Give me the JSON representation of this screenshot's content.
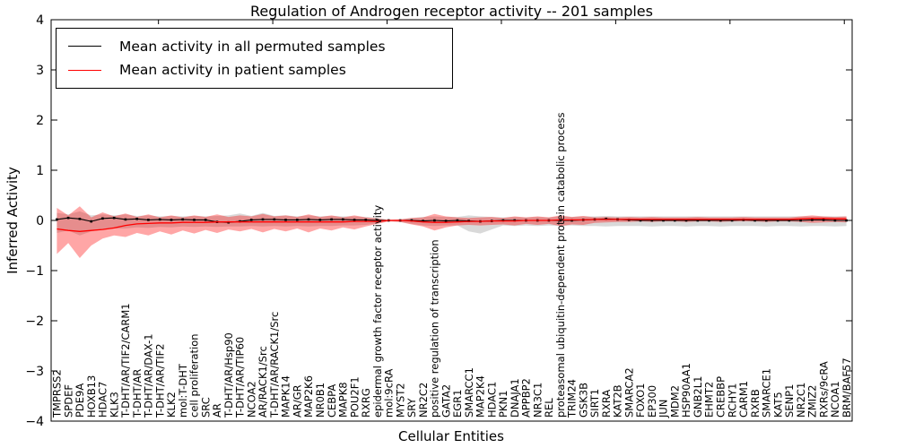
{
  "chart_data": {
    "type": "line",
    "title": "Regulation of Androgen receptor activity -- 201 samples",
    "xlabel": "Cellular Entities",
    "ylabel": "Inferred Activity",
    "ylim": [
      -4,
      4
    ],
    "yticks": [
      -4,
      -3,
      -2,
      -1,
      0,
      1,
      2,
      3,
      4
    ],
    "grid": false,
    "legend_position": "upper left",
    "x_tick_label_rotation": 90,
    "categories": [
      "TMPRSS2",
      "SPDEF",
      "PDE9A",
      "HOXB13",
      "HDAC7",
      "KLK3",
      "T-DHT/AR/TIF2/CARM1",
      "T-DHT/AR",
      "T-DHT/AR/DAX-1",
      "T-DHT/AR/TIF2",
      "KLK2",
      "mol:T-DHT",
      "cell proliferation",
      "SRC",
      "AR",
      "T-DHT/AR/Hsp90",
      "T-DHT/AR/TIP60",
      "NCOA2",
      "AR/RACK1/Src",
      "T-DHT/AR/RACK1/Src",
      "MAPK14",
      "AR/GR",
      "MAP2K6",
      "NR0B1",
      "CEBPA",
      "MAPK8",
      "POU2F1",
      "RXRG",
      "epidermal growth factor receptor activity",
      "mol:9cRA",
      "MYST2",
      "SRY",
      "NR2C2",
      "positive regulation of transcription",
      "GATA2",
      "EGR1",
      "SMARCC1",
      "MAP2K4",
      "HDAC1",
      "PKN1",
      "DNAJA1",
      "APPBP2",
      "NR3C1",
      "REL",
      "proteasomal ubiquitin-dependent protein catabolic process",
      "TRIM24",
      "GSK3B",
      "SIRT1",
      "RXRA",
      "KAT2B",
      "SMARCA2",
      "FOXO1",
      "EP300",
      "JUN",
      "MDM2",
      "HSP90AA1",
      "GNB2L1",
      "EHMT2",
      "CREBBP",
      "RCHY1",
      "CARM1",
      "RXRB",
      "SMARCE1",
      "KAT5",
      "SENP1",
      "NR2C1",
      "ZMIZ2",
      "RXRs/9cRA",
      "NCOA1",
      "BRM/BAF57"
    ],
    "series": [
      {
        "name": "Mean activity in all permuted samples",
        "color": "#000000",
        "band_color": "rgba(130,130,130,0.30)",
        "marker": "square",
        "values": [
          0.02,
          0.05,
          0.03,
          -0.02,
          0.04,
          0.05,
          0.02,
          0.03,
          0.01,
          0.02,
          0.01,
          0.02,
          0.01,
          0.01,
          -0.03,
          -0.04,
          -0.02,
          0.01,
          0.02,
          0.02,
          0.01,
          0.01,
          0.02,
          0.01,
          0.02,
          0.02,
          0.01,
          0.01,
          0.0,
          0.0,
          0.0,
          0.0,
          -0.01,
          0.0,
          -0.01,
          0.0,
          -0.01,
          -0.02,
          -0.01,
          0.0,
          0.0,
          0.0,
          0.0,
          0.0,
          0.0,
          0.0,
          0.01,
          0.02,
          0.03,
          0.02,
          0.01,
          0.0,
          0.0,
          0.0,
          0.0,
          0.0,
          0.0,
          0.0,
          0.0,
          0.0,
          0.01,
          0.0,
          0.0,
          0.0,
          0.0,
          0.0,
          0.01,
          0.01,
          0.0,
          0.0
        ],
        "band_upper": [
          0.15,
          0.12,
          0.18,
          0.1,
          0.12,
          0.1,
          0.12,
          0.09,
          0.1,
          0.08,
          0.09,
          0.08,
          0.09,
          0.08,
          0.09,
          0.1,
          0.14,
          0.09,
          0.15,
          0.09,
          0.1,
          0.08,
          0.1,
          0.08,
          0.09,
          0.08,
          0.08,
          0.07,
          0.05,
          0.01,
          0.02,
          0.05,
          0.07,
          0.08,
          0.07,
          0.07,
          0.1,
          0.08,
          0.07,
          0.06,
          0.07,
          0.06,
          0.07,
          0.06,
          0.08,
          0.07,
          0.08,
          0.08,
          0.09,
          0.08,
          0.08,
          0.08,
          0.08,
          0.08,
          0.08,
          0.08,
          0.08,
          0.08,
          0.08,
          0.08,
          0.08,
          0.08,
          0.08,
          0.08,
          0.08,
          0.08,
          0.08,
          0.08,
          0.08,
          0.08
        ],
        "band_lower": [
          -0.25,
          -0.2,
          -0.3,
          -0.22,
          -0.18,
          -0.16,
          -0.16,
          -0.14,
          -0.15,
          -0.13,
          -0.14,
          -0.12,
          -0.13,
          -0.12,
          -0.13,
          -0.12,
          -0.12,
          -0.11,
          -0.12,
          -0.11,
          -0.12,
          -0.11,
          -0.12,
          -0.11,
          -0.11,
          -0.1,
          -0.1,
          -0.09,
          -0.06,
          -0.01,
          -0.03,
          -0.07,
          -0.1,
          -0.11,
          -0.1,
          -0.1,
          -0.22,
          -0.26,
          -0.18,
          -0.1,
          -0.11,
          -0.1,
          -0.11,
          -0.1,
          -0.11,
          -0.1,
          -0.11,
          -0.11,
          -0.12,
          -0.11,
          -0.11,
          -0.11,
          -0.12,
          -0.11,
          -0.11,
          -0.12,
          -0.11,
          -0.11,
          -0.12,
          -0.11,
          -0.11,
          -0.11,
          -0.12,
          -0.11,
          -0.11,
          -0.12,
          -0.11,
          -0.11,
          -0.12,
          -0.11
        ]
      },
      {
        "name": "Mean activity in patient samples",
        "color": "#ff0000",
        "band_color": "rgba(255,0,0,0.35)",
        "marker": "none",
        "values": [
          -0.17,
          -0.2,
          -0.22,
          -0.2,
          -0.18,
          -0.15,
          -0.1,
          -0.07,
          -0.06,
          -0.05,
          -0.05,
          -0.04,
          -0.04,
          -0.04,
          -0.03,
          -0.03,
          -0.03,
          -0.03,
          -0.03,
          -0.03,
          -0.03,
          -0.03,
          -0.03,
          -0.03,
          -0.03,
          -0.03,
          -0.02,
          -0.02,
          -0.02,
          0.0,
          0.0,
          -0.01,
          -0.03,
          -0.04,
          -0.04,
          -0.03,
          -0.02,
          -0.02,
          -0.01,
          -0.01,
          -0.01,
          0.0,
          0.0,
          0.0,
          0.01,
          0.01,
          0.01,
          0.02,
          0.02,
          0.02,
          0.02,
          0.02,
          0.02,
          0.02,
          0.02,
          0.02,
          0.02,
          0.02,
          0.02,
          0.02,
          0.02,
          0.02,
          0.02,
          0.02,
          0.02,
          0.03,
          0.04,
          0.04,
          0.03,
          0.03
        ],
        "band_upper": [
          0.25,
          0.1,
          0.28,
          0.06,
          0.16,
          0.08,
          0.14,
          0.07,
          0.12,
          0.06,
          0.1,
          0.06,
          0.1,
          0.07,
          0.12,
          0.07,
          0.1,
          0.08,
          0.13,
          0.08,
          0.1,
          0.07,
          0.12,
          0.07,
          0.1,
          0.06,
          0.1,
          0.06,
          0.04,
          0.01,
          0.02,
          0.05,
          0.06,
          0.13,
          0.08,
          0.06,
          0.05,
          0.06,
          0.07,
          0.05,
          0.08,
          0.06,
          0.08,
          0.06,
          0.1,
          0.07,
          0.09,
          0.06,
          0.07,
          0.06,
          0.07,
          0.06,
          0.07,
          0.06,
          0.06,
          0.06,
          0.07,
          0.06,
          0.06,
          0.06,
          0.07,
          0.06,
          0.06,
          0.06,
          0.06,
          0.08,
          0.1,
          0.08,
          0.07,
          0.08
        ],
        "band_lower": [
          -0.67,
          -0.45,
          -0.75,
          -0.5,
          -0.36,
          -0.3,
          -0.33,
          -0.25,
          -0.3,
          -0.22,
          -0.28,
          -0.2,
          -0.26,
          -0.19,
          -0.25,
          -0.18,
          -0.22,
          -0.17,
          -0.24,
          -0.17,
          -0.22,
          -0.16,
          -0.24,
          -0.16,
          -0.2,
          -0.14,
          -0.18,
          -0.12,
          -0.07,
          -0.02,
          -0.03,
          -0.08,
          -0.12,
          -0.2,
          -0.14,
          -0.1,
          -0.09,
          -0.1,
          -0.09,
          -0.08,
          -0.1,
          -0.07,
          -0.09,
          -0.07,
          -0.11,
          -0.08,
          -0.09,
          -0.05,
          -0.04,
          -0.03,
          -0.03,
          -0.02,
          -0.03,
          -0.02,
          -0.02,
          -0.03,
          -0.02,
          -0.02,
          -0.03,
          -0.02,
          -0.02,
          -0.02,
          -0.03,
          -0.02,
          -0.02,
          -0.03,
          -0.05,
          -0.04,
          -0.03,
          -0.04
        ]
      }
    ]
  }
}
